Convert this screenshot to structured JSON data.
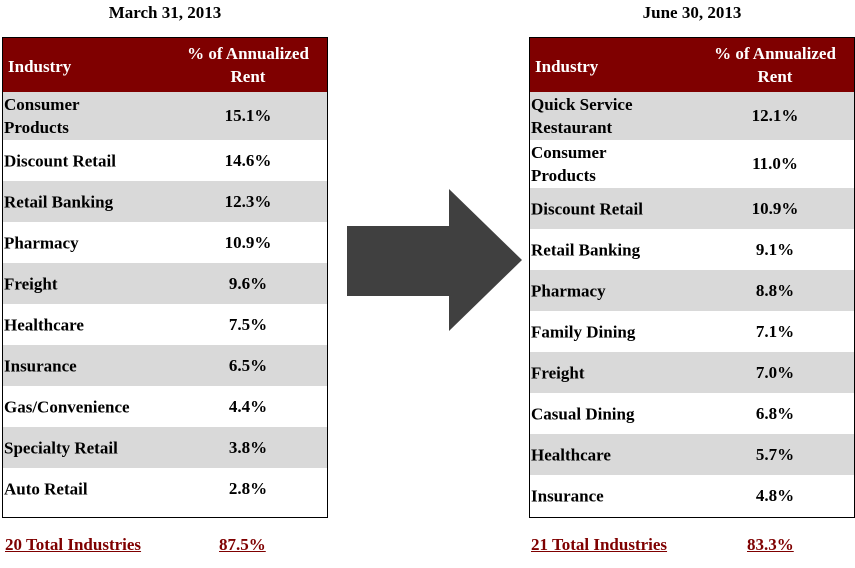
{
  "left": {
    "date": "March 31, 2013",
    "header": {
      "industry": "Industry",
      "pct_line1": "% of Annualized",
      "pct_line2": "Rent"
    },
    "rows": [
      {
        "industry": "Consumer\nProducts",
        "pct": "15.1%"
      },
      {
        "industry": "Discount Retail",
        "pct": "14.6%"
      },
      {
        "industry": "Retail Banking",
        "pct": "12.3%"
      },
      {
        "industry": "Pharmacy",
        "pct": "10.9%"
      },
      {
        "industry": "Freight",
        "pct": "9.6%"
      },
      {
        "industry": "Healthcare",
        "pct": "7.5%"
      },
      {
        "industry": "Insurance",
        "pct": "6.5%"
      },
      {
        "industry": "Gas/Convenience",
        "pct": "4.4%"
      },
      {
        "industry": "Specialty Retail",
        "pct": "3.8%"
      },
      {
        "industry": "Auto Retail",
        "pct": "2.8%"
      }
    ],
    "total": {
      "label": "20 Total Industries",
      "value": "87.5%"
    }
  },
  "right": {
    "date": "June 30, 2013",
    "header": {
      "industry": "Industry",
      "pct_line1": "% of Annualized",
      "pct_line2": "Rent"
    },
    "rows": [
      {
        "industry": "Quick Service\nRestaurant",
        "pct": "12.1%"
      },
      {
        "industry": "Consumer\nProducts",
        "pct": "11.0%"
      },
      {
        "industry": "Discount Retail",
        "pct": "10.9%"
      },
      {
        "industry": "Retail Banking",
        "pct": "9.1%"
      },
      {
        "industry": "Pharmacy",
        "pct": "8.8%"
      },
      {
        "industry": "Family Dining",
        "pct": "7.1%"
      },
      {
        "industry": "Freight",
        "pct": "7.0%"
      },
      {
        "industry": "Casual Dining",
        "pct": "6.8%"
      },
      {
        "industry": "Healthcare",
        "pct": "5.7%"
      },
      {
        "industry": "Insurance",
        "pct": "4.8%"
      }
    ],
    "total": {
      "label": "21 Total Industries",
      "value": "83.3%"
    }
  },
  "colors": {
    "header_bg": "#7f0000",
    "row_shade": "#d9d9d9",
    "arrow": "#404040",
    "total_text": "#7f0000"
  },
  "icons": {
    "transition": "right-arrow-icon"
  }
}
